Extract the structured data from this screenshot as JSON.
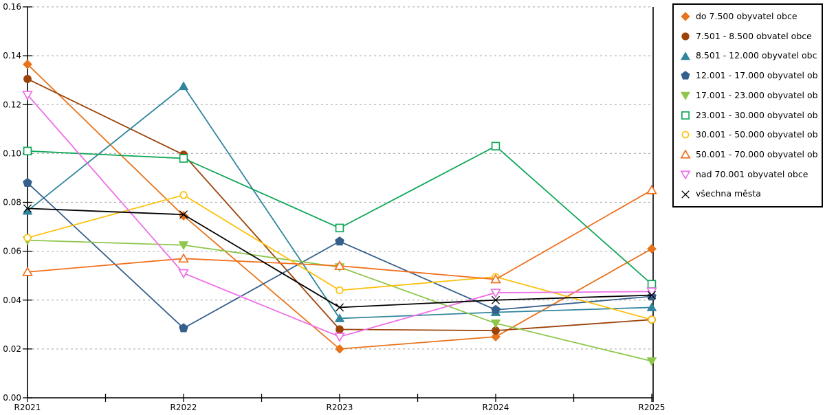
{
  "chart_data": {
    "type": "line",
    "title": "",
    "xlabel": "",
    "ylabel": "",
    "categories": [
      "R2021",
      "R2022",
      "R2023",
      "R2024",
      "R2025"
    ],
    "ylim": [
      0,
      0.16
    ],
    "ytick_step": 0.02,
    "ytick_labels": [
      "0.00",
      "0.02",
      "0.04",
      "0.06",
      "0.08",
      "0.10",
      "0.12",
      "0.14",
      "0.16"
    ],
    "grid": "horizontal-dashed",
    "legend_position": "top-right",
    "series": [
      {
        "name": "do 7.500 obyvatel obce",
        "marker": "diamond",
        "fill": "filled",
        "color": "#e7741c",
        "values": [
          0.1365,
          0.0745,
          0.02,
          0.025,
          0.061
        ]
      },
      {
        "name": "7.501 - 8.500 obvatel obce",
        "marker": "circle",
        "fill": "filled",
        "color": "#9c430a",
        "values": [
          0.1305,
          0.0995,
          0.028,
          0.0275,
          0.032
        ]
      },
      {
        "name": "8.501 - 12.000 obyvatel obce",
        "marker": "triangle-up",
        "fill": "filled",
        "color": "#31859c",
        "values": [
          0.0765,
          0.1275,
          0.0325,
          0.035,
          0.037
        ]
      },
      {
        "name": "12.001 - 17.000 obyvatel obc...",
        "marker": "pentagon",
        "fill": "filled",
        "color": "#36608c",
        "values": [
          0.088,
          0.0285,
          0.064,
          0.036,
          0.0415
        ]
      },
      {
        "name": "17.001 - 23.000 obyvatel obc...",
        "marker": "triangle-down",
        "fill": "filled",
        "color": "#8ec64a",
        "values": [
          0.0645,
          0.0625,
          0.0535,
          0.0305,
          0.015
        ]
      },
      {
        "name": "23.001 - 30.000 obyvatel obc...",
        "marker": "square",
        "fill": "open",
        "color": "#12a75a",
        "values": [
          0.101,
          0.098,
          0.0695,
          0.103,
          0.0465
        ]
      },
      {
        "name": "30.001 - 50.000 obyvatel obc...",
        "marker": "circle",
        "fill": "open",
        "color": "#fdc10e",
        "values": [
          0.0655,
          0.083,
          0.044,
          0.0495,
          0.032
        ]
      },
      {
        "name": "50.001 - 70.000 obyvatel obc...",
        "marker": "triangle-up",
        "fill": "open",
        "color": "#f1701e",
        "values": [
          0.0515,
          0.057,
          0.054,
          0.0485,
          0.085
        ]
      },
      {
        "name": "nad 70.001 obyvatel obce",
        "marker": "triangle-down",
        "fill": "open",
        "color": "#ee6fe8",
        "values": [
          0.124,
          0.051,
          0.025,
          0.043,
          0.0435
        ]
      },
      {
        "name": "všechna města",
        "marker": "x",
        "fill": "open",
        "color": "#000000",
        "values": [
          0.0775,
          0.075,
          0.037,
          0.04,
          0.042
        ]
      }
    ]
  },
  "colors": {
    "axis": "#000000",
    "grid": "#b5b5b5",
    "background": "#ffffff",
    "legend_border": "#000000"
  }
}
